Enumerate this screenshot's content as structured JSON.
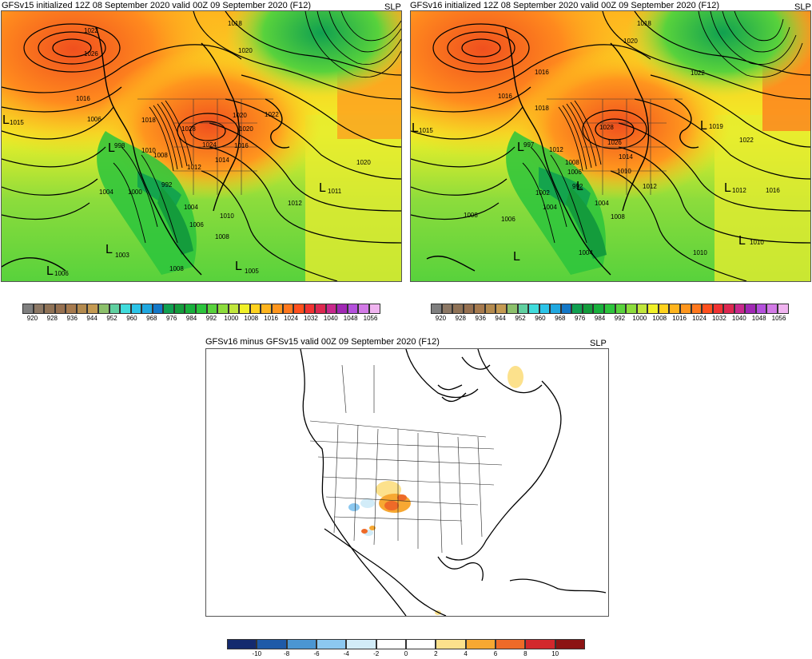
{
  "panels": {
    "gfsv15": {
      "title": "GFSv15 initialized 12Z 08 September 2020 valid 00Z 09 September 2020 (F12)",
      "var_label": "SLP",
      "contour_labels": [
        "1022",
        "1026",
        "1018",
        "1020",
        "1016",
        "1015",
        "1006",
        "1018",
        "1024",
        "1028",
        "1020",
        "1022",
        "1020",
        "1016",
        "998",
        "1010",
        "1008",
        "1014",
        "1012",
        "1004",
        "1000",
        "992",
        "1020",
        "1011",
        "1012",
        "1010",
        "1006",
        "1004",
        "1008",
        "1003",
        "1008",
        "1005",
        "1006"
      ],
      "low_labels": [
        "L",
        "L",
        "L",
        "L",
        "L",
        "L"
      ]
    },
    "gfsv16": {
      "title": "GFSv16 initialized 12Z 08 September 2020 valid 00Z 09 September 2020 (F12)",
      "var_label": "SLP",
      "contour_labels": [
        "1018",
        "1020",
        "1016",
        "1018",
        "1022",
        "1016",
        "1015",
        "1012",
        "997",
        "1028",
        "1026",
        "1019",
        "1022",
        "1014",
        "1010",
        "1012",
        "1006",
        "1008",
        "992",
        "1002",
        "1004",
        "1004",
        "1008",
        "1012",
        "1016",
        "1008",
        "1006",
        "1004",
        "1010",
        "1010"
      ],
      "low_labels": [
        "L",
        "L",
        "L",
        "L",
        "L",
        "L",
        "L"
      ]
    },
    "diff": {
      "title": "GFSv16 minus GFSv15 valid 00Z 09 September 2020 (F12)",
      "var_label": "SLP"
    }
  },
  "colorbars": {
    "slp": {
      "labels": [
        "920",
        "928",
        "936",
        "944",
        "952",
        "960",
        "968",
        "976",
        "984",
        "992",
        "1000",
        "1008",
        "1016",
        "1024",
        "1032",
        "1040",
        "1048",
        "1056"
      ],
      "colors": [
        "#7f7f7f",
        "#8c7865",
        "#8f7256",
        "#967050",
        "#a67a4e",
        "#b38a4e",
        "#c49a52",
        "#8cc06b",
        "#60d0a0",
        "#40dcdc",
        "#2cc4e8",
        "#20a8e0",
        "#1478c8",
        "#10a050",
        "#149c3c",
        "#18b03c",
        "#2cc43c",
        "#58d23c",
        "#8cdc3c",
        "#c0e63c",
        "#f0f028",
        "#ffd21e",
        "#ffb41e",
        "#ff961e",
        "#ff781e",
        "#ff501e",
        "#f03232",
        "#dc2850",
        "#c8288c",
        "#a028b4",
        "#b450dc",
        "#d27ae6",
        "#f0b4f0"
      ]
    },
    "diff": {
      "labels": [
        "-10",
        "-8",
        "-6",
        "-4",
        "-2",
        "0",
        "2",
        "4",
        "6",
        "8",
        "10"
      ],
      "colors": [
        "#142a6e",
        "#1e5aa8",
        "#4b96d2",
        "#8cc8f0",
        "#d2ecf8",
        "#ffffff",
        "#ffffff",
        "#fce18c",
        "#f7a832",
        "#ee6a28",
        "#d2282d",
        "#8c1414"
      ]
    }
  }
}
